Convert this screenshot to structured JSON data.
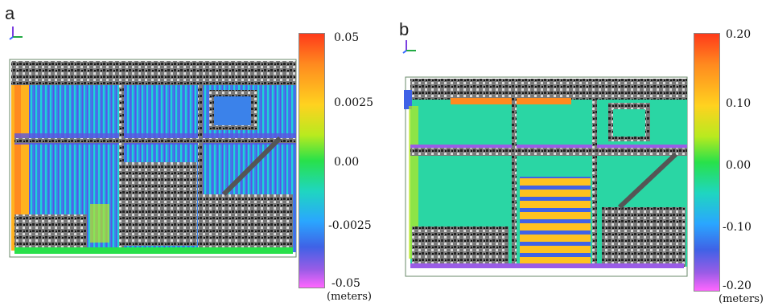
{
  "panels": [
    {
      "label": "a",
      "colorbar": {
        "ticks": [
          "0.05",
          "0.0025",
          "0.00",
          "-0.0025",
          "-0.05"
        ],
        "unit": "(meters)"
      }
    },
    {
      "label": "b",
      "colorbar": {
        "ticks": [
          "0.20",
          "0.10",
          "0.00",
          "-0.10",
          "-0.20"
        ],
        "unit": "(meters)"
      }
    }
  ],
  "colors": {
    "high": "#ff3a1a",
    "mid_high": "#ffd21f",
    "zero": "#28e14a",
    "mid_low": "#2aa6ff",
    "low": "#ff66ff"
  }
}
